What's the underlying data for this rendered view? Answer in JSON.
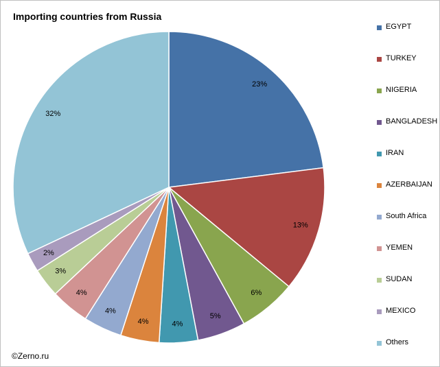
{
  "chart_data": {
    "type": "pie",
    "title": "Importing countries from Russia",
    "categories": [
      "EGYPT",
      "TURKEY",
      "NIGERIA",
      "BANGLADESH",
      "IRAN",
      "AZERBAIJAN",
      "South Africa",
      "YEMEN",
      "SUDAN",
      "MEXICO",
      "Others"
    ],
    "values": [
      23,
      13,
      6,
      5,
      4,
      4,
      4,
      4,
      3,
      2,
      32
    ],
    "labels": [
      "23%",
      "13%",
      "6%",
      "5%",
      "4%",
      "4%",
      "4%",
      "4%",
      "3%",
      "2%",
      "32%"
    ],
    "colors": [
      "#4572A7",
      "#AA4643",
      "#89A54E",
      "#71588F",
      "#4198AF",
      "#DB843D",
      "#93A9CF",
      "#D19392",
      "#B9CD96",
      "#A99BBD",
      "#93C4D6"
    ],
    "start_angle_deg": 0,
    "direction": "clockwise",
    "legend": "right"
  },
  "footer": {
    "credit": "©Zerno.ru"
  }
}
